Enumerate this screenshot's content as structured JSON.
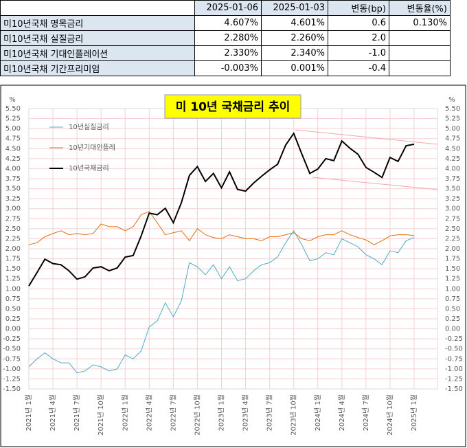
{
  "table": {
    "header": [
      null,
      "2025-01-06",
      "2025-01-03",
      "변동(bp)",
      "변동율(%)"
    ],
    "rows": [
      [
        "미10년국채 명목금리",
        "4.607%",
        "4.601%",
        "0.6",
        "0.130%"
      ],
      [
        "미10년국채 실질금리",
        "2.280%",
        "2.260%",
        "2.0",
        null
      ],
      [
        "미10년국채 기대인플레이션",
        "2.330%",
        "2.340%",
        "-1.0",
        null
      ],
      [
        "미10년국채 기간프리미엄",
        "-0.003%",
        "0.001%",
        "-0.4",
        null
      ]
    ]
  },
  "chart_data": {
    "type": "line",
    "title": "미 10년 국채금리 추이",
    "ylabel": "%",
    "y2label": "%",
    "categories": [
      "2021년 1월",
      null,
      null,
      "2021년 4월",
      null,
      null,
      "2021년 7월",
      null,
      null,
      "2021년 10월",
      null,
      null,
      "2022년 1월",
      null,
      null,
      "2022년 4월",
      null,
      null,
      "2022년 7월",
      null,
      null,
      "2022년 10월",
      null,
      null,
      "2023년 1월",
      null,
      null,
      "2023년 4월",
      null,
      null,
      "2023년 7월",
      null,
      null,
      "2023년 10월",
      null,
      null,
      "2024년 1월",
      null,
      null,
      "2024년 4월",
      null,
      null,
      "2024년 7월",
      null,
      null,
      "2024년 10월",
      null,
      null,
      "2025년 1월"
    ],
    "series": [
      {
        "name": "10년실질금리",
        "color": "#4bacc6",
        "values": [
          -0.95,
          -0.75,
          -0.6,
          -0.75,
          -0.85,
          -0.85,
          -1.1,
          -1.05,
          -0.9,
          -0.95,
          -1.05,
          -1.0,
          -0.65,
          -0.75,
          -0.55,
          0.05,
          0.2,
          0.65,
          0.3,
          0.7,
          1.65,
          1.55,
          1.35,
          1.6,
          1.25,
          1.55,
          1.2,
          1.25,
          1.45,
          1.6,
          1.65,
          1.8,
          2.15,
          2.45,
          2.1,
          1.7,
          1.75,
          1.9,
          1.85,
          2.25,
          2.15,
          2.05,
          1.85,
          1.75,
          1.6,
          1.95,
          1.9,
          2.2,
          2.28
        ]
      },
      {
        "name": "10년기대인플레",
        "color": "#e36c09",
        "values": [
          2.1,
          2.15,
          2.3,
          2.38,
          2.45,
          2.35,
          2.38,
          2.35,
          2.38,
          2.62,
          2.55,
          2.55,
          2.45,
          2.55,
          2.85,
          2.93,
          2.65,
          2.35,
          2.4,
          2.45,
          2.2,
          2.5,
          2.35,
          2.28,
          2.25,
          2.35,
          2.3,
          2.25,
          2.25,
          2.2,
          2.3,
          2.3,
          2.35,
          2.4,
          2.25,
          2.2,
          2.3,
          2.35,
          2.35,
          2.45,
          2.35,
          2.28,
          2.22,
          2.1,
          2.2,
          2.32,
          2.35,
          2.35,
          2.33
        ]
      },
      {
        "name": "10년국채금리",
        "color": "#000000",
        "values": [
          1.07,
          1.4,
          1.74,
          1.63,
          1.6,
          1.45,
          1.24,
          1.3,
          1.52,
          1.55,
          1.45,
          1.52,
          1.79,
          1.83,
          2.32,
          2.89,
          2.85,
          3.01,
          2.65,
          3.15,
          3.83,
          4.05,
          3.68,
          3.88,
          3.52,
          3.92,
          3.48,
          3.44,
          3.64,
          3.81,
          3.97,
          4.11,
          4.59,
          4.88,
          4.37,
          3.88,
          3.99,
          4.25,
          4.2,
          4.69,
          4.51,
          4.36,
          4.03,
          3.91,
          3.78,
          4.28,
          4.18,
          4.57,
          4.61
        ]
      }
    ],
    "ylim": [
      -1.5,
      5.5
    ],
    "y2lim": [
      -1.5,
      5.5
    ],
    "yticks": [
      {
        "value": -1.5,
        "label": "-1.50"
      },
      {
        "value": -1.25,
        "label": "-1.25"
      },
      {
        "value": -1,
        "label": "-1.00"
      },
      {
        "value": -0.75,
        "label": "-0.75"
      },
      {
        "value": -0.5,
        "label": "-0.50"
      },
      {
        "value": -0.25,
        "label": "-0.25"
      },
      {
        "value": 0,
        "label": "0.00"
      },
      {
        "value": 0.25,
        "label": "0.25"
      },
      {
        "value": 0.5,
        "label": "0.50"
      },
      {
        "value": 0.75,
        "label": "0.75"
      },
      {
        "value": 1,
        "label": "1.00"
      },
      {
        "value": 1.25,
        "label": "1.25"
      },
      {
        "value": 1.5,
        "label": "1.50"
      },
      {
        "value": 1.75,
        "label": "1.75"
      },
      {
        "value": 2,
        "label": "2.00"
      },
      {
        "value": 2.25,
        "label": "2.25"
      },
      {
        "value": 2.5,
        "label": "2.50"
      },
      {
        "value": 2.75,
        "label": "2.75"
      },
      {
        "value": 3,
        "label": "3.00"
      },
      {
        "value": 3.25,
        "label": "3.25"
      },
      {
        "value": 3.5,
        "label": "3.50"
      },
      {
        "value": 3.75,
        "label": "3.75"
      },
      {
        "value": 4,
        "label": "4.00"
      },
      {
        "value": 4.25,
        "label": "4.25"
      },
      {
        "value": 4.5,
        "label": "4.50"
      },
      {
        "value": 4.75,
        "label": "4.75"
      },
      {
        "value": 5,
        "label": "5.00"
      },
      {
        "value": 5.25,
        "label": "5.25"
      },
      {
        "value": 5.5,
        "label": "5.50"
      }
    ],
    "y2ticks": [
      {
        "value": -1.5,
        "label": "-1.50"
      },
      {
        "value": -1.25,
        "label": "-1.25"
      },
      {
        "value": -1,
        "label": "-1.00"
      },
      {
        "value": -0.75,
        "label": "-0.75"
      },
      {
        "value": -0.5,
        "label": "-0.50"
      },
      {
        "value": -0.25,
        "label": "-0.25"
      },
      {
        "value": 0,
        "label": "0.00"
      },
      {
        "value": 0.25,
        "label": "0.25"
      },
      {
        "value": 0.5,
        "label": "0.50"
      },
      {
        "value": 0.75,
        "label": "0.75"
      },
      {
        "value": 1,
        "label": "1.00"
      },
      {
        "value": 1.25,
        "label": "1.25"
      },
      {
        "value": 1.5,
        "label": "1.50"
      },
      {
        "value": 1.75,
        "label": "1.75"
      },
      {
        "value": 2,
        "label": "2.00"
      },
      {
        "value": 2.25,
        "label": "2.25"
      },
      {
        "value": 2.5,
        "label": "2.50"
      },
      {
        "value": 2.75,
        "label": "2.75"
      },
      {
        "value": 3,
        "label": "3.00"
      },
      {
        "value": 3.25,
        "label": "3.25"
      },
      {
        "value": 3.5,
        "label": "3.50"
      },
      {
        "value": 3.75,
        "label": "3.75"
      },
      {
        "value": 4,
        "label": "4.00"
      },
      {
        "value": 4.25,
        "label": "4.25"
      },
      {
        "value": 4.5,
        "label": "4.50"
      },
      {
        "value": 4.75,
        "label": "4.75"
      },
      {
        "value": 5,
        "label": "5.00"
      },
      {
        "value": 5.25,
        "label": "5.25"
      },
      {
        "value": 5.5,
        "label": "5.50"
      }
    ],
    "grid": true,
    "legend": "upper left"
  }
}
